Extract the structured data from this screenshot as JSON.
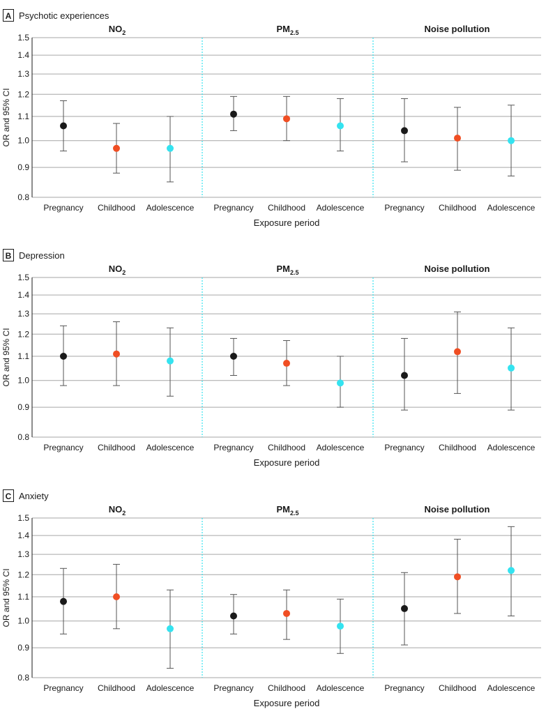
{
  "figure": {
    "xlabel": "Exposure period",
    "ylabel": "OR and 95% CI",
    "group_labels": [
      {
        "main": "NO",
        "sub": "2"
      },
      {
        "main": "PM",
        "sub": "2.5"
      },
      {
        "main": "Noise pollution",
        "sub": ""
      }
    ],
    "categories": [
      "Pregnancy",
      "Childhood",
      "Adolescence"
    ],
    "yticks": [
      "1.5",
      "1.4",
      "1.3",
      "1.2",
      "1.1",
      "1.0",
      "0.9",
      "0.8"
    ],
    "colors": {
      "Pregnancy": "#1a1a1a",
      "Childhood": "#f04e23",
      "Adolescence": "#34e3f0",
      "separator": "#34e3f0",
      "grid": "#a6a6a6",
      "errorbar": "#555555"
    }
  },
  "chart_data": [
    {
      "type": "scatter",
      "panel": "A",
      "title": "Psychotic experiences",
      "xlabel": "Exposure period",
      "ylabel": "OR and 95% CI",
      "y_scale": "log",
      "ylim": [
        0.8,
        1.5
      ],
      "groups": [
        {
          "name": "NO2",
          "points": [
            {
              "period": "Pregnancy",
              "or": 1.06,
              "lo": 0.96,
              "hi": 1.17
            },
            {
              "period": "Childhood",
              "or": 0.97,
              "lo": 0.88,
              "hi": 1.07
            },
            {
              "period": "Adolescence",
              "or": 0.97,
              "lo": 0.85,
              "hi": 1.1
            }
          ]
        },
        {
          "name": "PM2.5",
          "points": [
            {
              "period": "Pregnancy",
              "or": 1.11,
              "lo": 1.04,
              "hi": 1.19
            },
            {
              "period": "Childhood",
              "or": 1.09,
              "lo": 1.0,
              "hi": 1.19
            },
            {
              "period": "Adolescence",
              "or": 1.06,
              "lo": 0.96,
              "hi": 1.18
            }
          ]
        },
        {
          "name": "Noise pollution",
          "points": [
            {
              "period": "Pregnancy",
              "or": 1.04,
              "lo": 0.92,
              "hi": 1.18
            },
            {
              "period": "Childhood",
              "or": 1.01,
              "lo": 0.89,
              "hi": 1.14
            },
            {
              "period": "Adolescence",
              "or": 1.0,
              "lo": 0.87,
              "hi": 1.15
            }
          ]
        }
      ]
    },
    {
      "type": "scatter",
      "panel": "B",
      "title": "Depression",
      "xlabel": "Exposure period",
      "ylabel": "OR and 95% CI",
      "y_scale": "log",
      "ylim": [
        0.8,
        1.5
      ],
      "groups": [
        {
          "name": "NO2",
          "points": [
            {
              "period": "Pregnancy",
              "or": 1.1,
              "lo": 0.98,
              "hi": 1.24
            },
            {
              "period": "Childhood",
              "or": 1.11,
              "lo": 0.98,
              "hi": 1.26
            },
            {
              "period": "Adolescence",
              "or": 1.08,
              "lo": 0.94,
              "hi": 1.23
            }
          ]
        },
        {
          "name": "PM2.5",
          "points": [
            {
              "period": "Pregnancy",
              "or": 1.1,
              "lo": 1.02,
              "hi": 1.18
            },
            {
              "period": "Childhood",
              "or": 1.07,
              "lo": 0.98,
              "hi": 1.17
            },
            {
              "period": "Adolescence",
              "or": 0.99,
              "lo": 0.9,
              "hi": 1.1
            }
          ]
        },
        {
          "name": "Noise pollution",
          "points": [
            {
              "period": "Pregnancy",
              "or": 1.02,
              "lo": 0.89,
              "hi": 1.18
            },
            {
              "period": "Childhood",
              "or": 1.12,
              "lo": 0.95,
              "hi": 1.31
            },
            {
              "period": "Adolescence",
              "or": 1.05,
              "lo": 0.89,
              "hi": 1.23
            }
          ]
        }
      ]
    },
    {
      "type": "scatter",
      "panel": "C",
      "title": "Anxiety",
      "xlabel": "Exposure period",
      "ylabel": "OR and 95% CI",
      "y_scale": "log",
      "ylim": [
        0.8,
        1.5
      ],
      "groups": [
        {
          "name": "NO2",
          "points": [
            {
              "period": "Pregnancy",
              "or": 1.08,
              "lo": 0.95,
              "hi": 1.23
            },
            {
              "period": "Childhood",
              "or": 1.1,
              "lo": 0.97,
              "hi": 1.25
            },
            {
              "period": "Adolescence",
              "or": 0.97,
              "lo": 0.83,
              "hi": 1.13
            }
          ]
        },
        {
          "name": "PM2.5",
          "points": [
            {
              "period": "Pregnancy",
              "or": 1.02,
              "lo": 0.95,
              "hi": 1.11
            },
            {
              "period": "Childhood",
              "or": 1.03,
              "lo": 0.93,
              "hi": 1.13
            },
            {
              "period": "Adolescence",
              "or": 0.98,
              "lo": 0.88,
              "hi": 1.09
            }
          ]
        },
        {
          "name": "Noise pollution",
          "points": [
            {
              "period": "Pregnancy",
              "or": 1.05,
              "lo": 0.91,
              "hi": 1.21
            },
            {
              "period": "Childhood",
              "or": 1.19,
              "lo": 1.03,
              "hi": 1.38
            },
            {
              "period": "Adolescence",
              "or": 1.22,
              "lo": 1.02,
              "hi": 1.45
            }
          ]
        }
      ]
    }
  ]
}
